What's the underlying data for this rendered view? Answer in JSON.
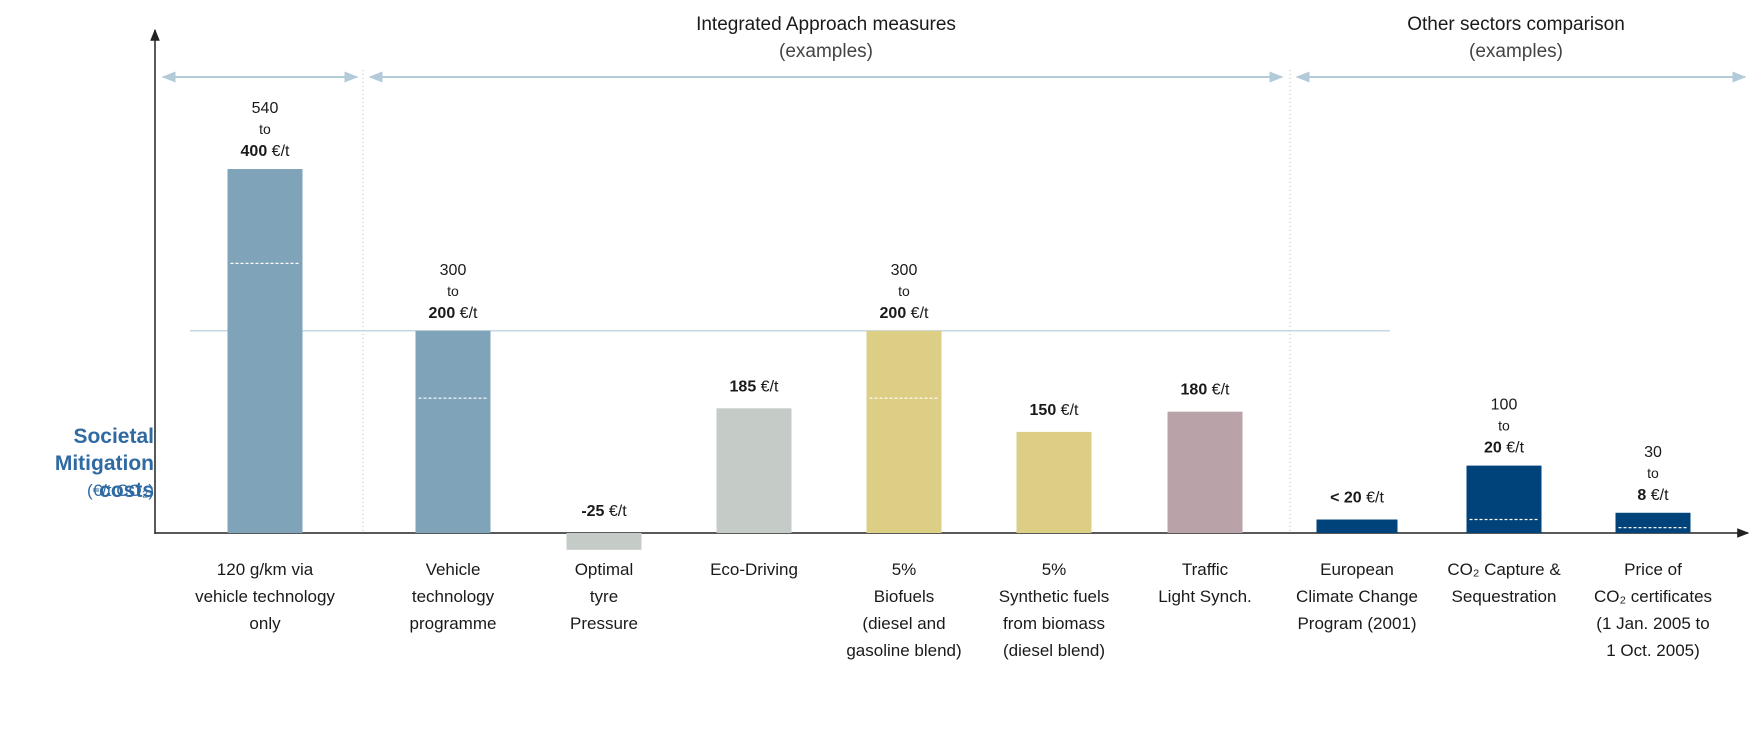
{
  "chart_data": {
    "type": "range_bar",
    "y_label": [
      "Societal",
      "Mitigation",
      "costs"
    ],
    "y_unit": "(€/t CO₂)",
    "groups": [
      {
        "title": "Integrated Approach measures",
        "subtitle": "(examples)"
      },
      {
        "title": "Other sectors comparison",
        "subtitle": "(examples)"
      }
    ],
    "range_word": "to",
    "categories": [
      "120 g/km via\nvehicle technology\nonly",
      "Vehicle\ntechnology\nprogramme",
      "Optimal\ntyre\nPressure",
      "Eco-Driving",
      "5%\nBiofuels\n(diesel and\ngasoline blend)",
      "5%\nSynthetic fuels\nfrom biomass\n(diesel blend)",
      "Traffic\nLight Synch.",
      "European\nClimate Change\nProgram (2001)",
      "CO₂ Capture &\nSequestration",
      "Price of\nCO₂ certificates\n(1 Jan. 2005 to\n1 Oct. 2005)"
    ],
    "values": [
      540,
      300,
      -25,
      185,
      300,
      150,
      180,
      20,
      100,
      30
    ],
    "value_labels": [
      "540 €/t",
      "300 €/t",
      "-25 €/t",
      "185 €/t",
      "300 €/t",
      "150 €/t",
      "180 €/t",
      "< 20 €/t",
      "100 €/t",
      "30 €/t"
    ],
    "low_values": [
      400,
      200,
      null,
      null,
      200,
      null,
      null,
      null,
      20,
      8
    ],
    "low_value_labels": [
      "400 €/t",
      "200 €/t",
      null,
      null,
      "200 €/t",
      null,
      null,
      null,
      "20 €/t",
      "8 €/t"
    ],
    "colors": [
      "#7fa3b8",
      "#7fa3b8",
      "#c5ccc7",
      "#c5ccc7",
      "#ddce86",
      "#ddce86",
      "#b9a3a8",
      "#00427a",
      "#00427a",
      "#00427a"
    ],
    "reference_line": 300,
    "ylim": [
      -50,
      700
    ]
  }
}
